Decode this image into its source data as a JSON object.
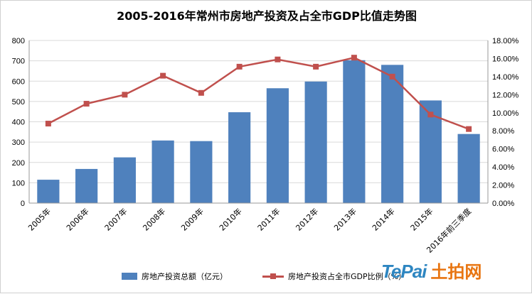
{
  "chart_data": {
    "type": "bar",
    "title": "2005-2016年常州市房地产投资及占全市GDP比值走势图",
    "categories": [
      "2005年",
      "2006年",
      "2007年",
      "2008年",
      "2009年",
      "2010年",
      "2011年",
      "2012年",
      "2013年",
      "2014年",
      "2015年",
      "2016年前三季度"
    ],
    "series": [
      {
        "name": "房地产投资总额（亿元）",
        "type": "bar",
        "axis": "left",
        "color": "#4f81bd",
        "values": [
          115,
          168,
          225,
          308,
          305,
          447,
          565,
          598,
          703,
          680,
          505,
          340
        ]
      },
      {
        "name": "房地产投资占全市GDP比例（%）",
        "type": "line",
        "axis": "right",
        "color": "#c0504d",
        "values": [
          8.8,
          11.0,
          12.0,
          14.1,
          12.2,
          15.1,
          15.9,
          15.1,
          16.1,
          14.0,
          9.8,
          8.2
        ]
      }
    ],
    "y_left": {
      "min": 0,
      "max": 800,
      "ticks": [
        "0",
        "100",
        "200",
        "300",
        "400",
        "500",
        "600",
        "700",
        "800"
      ]
    },
    "y_right": {
      "min": 0,
      "max": 18,
      "ticks": [
        "0.00%",
        "2.00%",
        "4.00%",
        "6.00%",
        "8.00%",
        "10.00%",
        "12.00%",
        "14.00%",
        "16.00%",
        "18.00%"
      ]
    },
    "grid": true,
    "legend": "bottom"
  },
  "logo": {
    "en": "TePai",
    "cn": "土拍网"
  }
}
